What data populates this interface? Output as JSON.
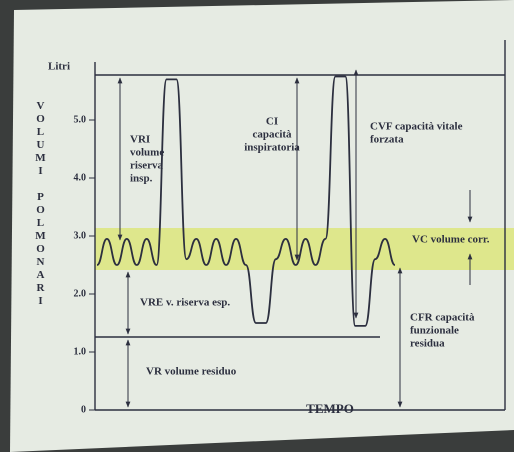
{
  "chart_data": {
    "type": "line",
    "y_unit": "Litri",
    "y_label": "VOLUMI POLMONARI",
    "x_label": "TEMPO",
    "ylim": [
      0,
      6
    ],
    "yticks": [
      0,
      {
        "value": 1,
        "label": "1.0"
      },
      {
        "value": 2,
        "label": "2.0"
      },
      {
        "value": 3,
        "label": "3.0"
      },
      {
        "value": 4,
        "label": "4.0"
      },
      {
        "value": 5,
        "label": "5.0"
      }
    ],
    "categories": [
      null,
      null,
      null,
      null,
      null,
      null,
      null,
      null,
      null,
      null,
      null,
      null,
      null,
      null,
      null,
      null,
      null,
      null,
      null,
      null,
      null,
      null,
      null,
      null,
      null,
      null,
      null,
      null,
      null,
      null,
      null
    ],
    "series": [
      {
        "color": "#2c2f3f",
        "values": [
          2.5,
          2.95,
          2.5,
          2.95,
          2.5,
          2.95,
          2.5,
          5.7,
          5.7,
          2.6,
          2.95,
          2.5,
          2.95,
          2.5,
          2.95,
          2.5,
          1.5,
          1.5,
          2.6,
          2.95,
          2.5,
          2.95,
          2.5,
          2.95,
          5.75,
          5.75,
          1.45,
          1.45,
          2.6,
          2.95,
          2.5
        ]
      }
    ],
    "annotations": [
      {
        "lines": [
          "VRI",
          "volume",
          "riserva",
          "insp."
        ]
      },
      {
        "lines": [
          "CI",
          "capacità",
          "inspiratoria"
        ]
      },
      {
        "lines": [
          "CVF capacità vitale",
          "forzata"
        ]
      },
      {
        "lines": [
          "VC volume corr."
        ]
      },
      {
        "lines": [
          "VRE v. riserva esp."
        ]
      },
      {
        "lines": [
          "VR volume residuo"
        ]
      },
      {
        "lines": [
          "CFR capacità",
          "funzionale",
          "residua"
        ]
      }
    ]
  }
}
